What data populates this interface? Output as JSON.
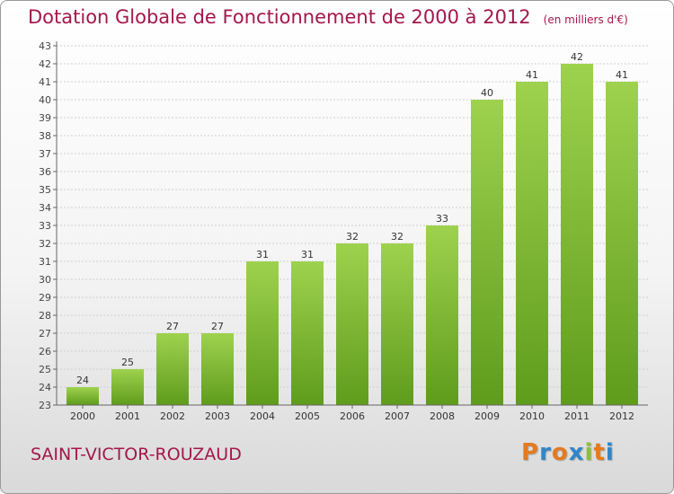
{
  "title": "Dotation Globale de Fonctionnement de 2000 à 2012",
  "unit_label": "(en milliers d'€)",
  "commune": "SAINT-VICTOR-ROUZAUD",
  "logo": {
    "letters": [
      "P",
      "r",
      "o",
      "x",
      "i",
      "t",
      "i"
    ],
    "colors": [
      "#e37b20",
      "#2f86c9",
      "#e37b20",
      "#2f86c9",
      "#8bbf3a",
      "#e37b20",
      "#2f86c9"
    ]
  },
  "colors": {
    "title": "#a3174a",
    "bar_light": "#9ed24e",
    "bar_dark": "#5f9c1c",
    "grid": "#cfcfcf"
  },
  "chart_data": {
    "type": "bar",
    "title": "Dotation Globale de Fonctionnement de 2000 à 2012",
    "xlabel": "",
    "ylabel": "",
    "ylim": [
      23,
      43
    ],
    "yticks": [
      23,
      24,
      25,
      26,
      27,
      28,
      29,
      30,
      31,
      32,
      33,
      34,
      35,
      36,
      37,
      38,
      39,
      40,
      41,
      42,
      43
    ],
    "grid": true,
    "categories": [
      "2000",
      "2001",
      "2002",
      "2003",
      "2004",
      "2005",
      "2006",
      "2007",
      "2008",
      "2009",
      "2010",
      "2011",
      "2012"
    ],
    "values": [
      24,
      25,
      27,
      27,
      31,
      31,
      32,
      32,
      33,
      40,
      41,
      42,
      41
    ]
  }
}
